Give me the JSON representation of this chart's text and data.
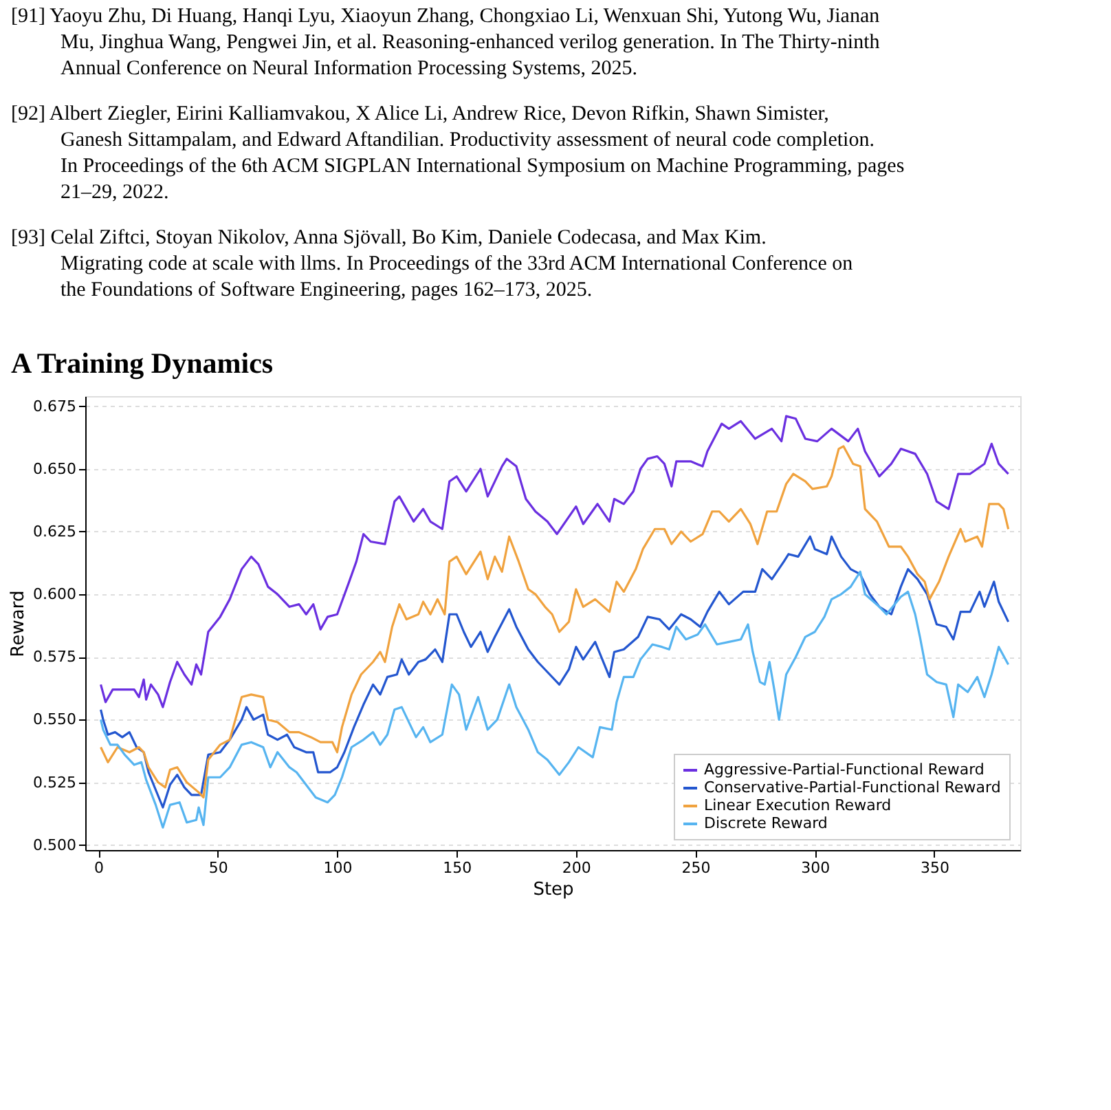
{
  "chart_data": {
    "type": "line",
    "title": "A Training Dynamics",
    "annotations": [
      "[91] Yaoyu Zhu, Di Huang, Hanqi Lyu, Xiaoyun Zhang, Chongxiao Li, Wenxuan Shi, Yutong Wu, Jianan Mu, Jinghua Wang, Pengwei Jin, et al. Reasoning-enhanced verilog generation. In The Thirty-ninth Annual Conference on Neural Information Processing Systems, 2025.",
      "[92] Albert Ziegler, Eirini Kalliamvakou, X Alice Li, Andrew Rice, Devon Rifkin, Shawn Simister, Ganesh Sittampalam, and Edward Aftandilian. Productivity assessment of neural code completion. In Proceedings of the 6th ACM SIGPLAN International Symposium on Machine Programming, pages 21–29, 2022.",
      "[93] Celal Ziftci, Stoyan Nikolov, Anna Sjövall, Bo Kim, Daniele Codecasa, and Max Kim. Migrating code at scale with llms. In Proceedings of the 33rd ACM International Conference on the Foundations of Software Engineering, pages 162–173, 2025."
    ],
    "xlabel": "Step",
    "ylabel": "Reward",
    "xlim": [
      -5.5,
      386
    ],
    "xticks": [
      0,
      50,
      100,
      150,
      200,
      250,
      300,
      350
    ],
    "ylim": [
      0.498,
      0.679
    ],
    "yticks": [
      {
        "value": 0.5,
        "label": "0.500"
      },
      {
        "value": 0.525,
        "label": "0.525"
      },
      {
        "value": 0.55,
        "label": "0.550"
      },
      {
        "value": 0.575,
        "label": "0.575"
      },
      {
        "value": 0.6,
        "label": "0.600"
      },
      {
        "value": 0.625,
        "label": "0.625"
      },
      {
        "value": 0.65,
        "label": "0.650"
      },
      {
        "value": 0.675,
        "label": "0.675"
      }
    ],
    "grid": "y",
    "legend": "bottom right",
    "series": [
      {
        "name": "Aggressive-Partial-Functional Reward",
        "color": "#6a2fe0",
        "x": [
          1,
          3,
          6,
          15,
          17,
          19,
          20,
          22,
          25,
          27,
          30,
          33,
          36,
          39,
          41,
          43,
          46,
          51,
          55,
          60,
          64,
          67,
          71,
          75,
          80,
          84,
          87,
          90,
          93,
          96,
          100,
          105,
          108,
          111,
          114,
          120,
          124,
          126,
          132,
          136,
          139,
          144,
          147,
          150,
          154,
          160,
          163,
          169,
          171,
          175,
          179,
          183,
          188,
          192,
          200,
          203,
          209,
          214,
          216,
          220,
          224,
          227,
          230,
          234,
          237,
          240,
          242,
          248,
          253,
          255,
          261,
          264,
          269,
          275,
          282,
          286,
          288,
          292,
          296,
          301,
          307,
          314,
          318,
          321,
          327,
          332,
          336,
          342,
          347,
          351,
          356,
          360,
          365,
          371,
          374,
          377,
          381
        ],
        "values": [
          0.564,
          0.557,
          0.562,
          0.562,
          0.559,
          0.566,
          0.558,
          0.564,
          0.56,
          0.555,
          0.565,
          0.573,
          0.568,
          0.564,
          0.572,
          0.568,
          0.585,
          0.591,
          0.598,
          0.61,
          0.615,
          0.612,
          0.603,
          0.6,
          0.595,
          0.596,
          0.592,
          0.596,
          0.586,
          0.591,
          0.592,
          0.605,
          0.613,
          0.624,
          0.621,
          0.62,
          0.637,
          0.639,
          0.629,
          0.634,
          0.629,
          0.626,
          0.645,
          0.647,
          0.641,
          0.65,
          0.639,
          0.651,
          0.654,
          0.651,
          0.638,
          0.633,
          0.629,
          0.624,
          0.635,
          0.628,
          0.636,
          0.629,
          0.638,
          0.636,
          0.641,
          0.65,
          0.654,
          0.655,
          0.652,
          0.643,
          0.653,
          0.653,
          0.651,
          0.657,
          0.668,
          0.666,
          0.669,
          0.662,
          0.666,
          0.661,
          0.671,
          0.67,
          0.662,
          0.661,
          0.666,
          0.661,
          0.666,
          0.657,
          0.647,
          0.652,
          0.658,
          0.656,
          0.648,
          0.637,
          0.634,
          0.648,
          0.648,
          0.652,
          0.66,
          0.652,
          0.648
        ]
      },
      {
        "name": "Conservative-Partial-Functional Reward",
        "color": "#2356cf",
        "x": [
          1,
          2,
          4,
          7,
          10,
          13,
          16,
          19,
          21,
          24,
          27,
          30,
          33,
          36,
          39,
          43,
          46,
          51,
          55,
          60,
          62,
          65,
          69,
          71,
          75,
          79,
          82,
          87,
          90,
          92,
          97,
          100,
          103,
          107,
          111,
          115,
          118,
          121,
          125,
          127,
          130,
          134,
          137,
          141,
          144,
          147,
          150,
          153,
          156,
          160,
          163,
          166,
          172,
          175,
          180,
          184,
          189,
          193,
          197,
          200,
          203,
          208,
          214,
          216,
          220,
          226,
          230,
          235,
          239,
          244,
          248,
          252,
          255,
          260,
          264,
          270,
          275,
          278,
          282,
          287,
          289,
          293,
          298,
          300,
          305,
          307,
          311,
          315,
          319,
          323,
          327,
          332,
          336,
          339,
          343,
          347,
          351,
          355,
          358,
          361,
          365,
          369,
          371,
          375,
          377,
          381
        ],
        "values": [
          0.554,
          0.55,
          0.544,
          0.545,
          0.543,
          0.545,
          0.539,
          0.537,
          0.529,
          0.522,
          0.515,
          0.524,
          0.528,
          0.523,
          0.52,
          0.52,
          0.536,
          0.537,
          0.542,
          0.55,
          0.555,
          0.55,
          0.552,
          0.544,
          0.542,
          0.544,
          0.539,
          0.537,
          0.537,
          0.529,
          0.529,
          0.531,
          0.537,
          0.547,
          0.556,
          0.564,
          0.56,
          0.567,
          0.568,
          0.574,
          0.568,
          0.573,
          0.574,
          0.578,
          0.573,
          0.592,
          0.592,
          0.585,
          0.579,
          0.585,
          0.577,
          0.583,
          0.594,
          0.587,
          0.578,
          0.573,
          0.568,
          0.564,
          0.57,
          0.579,
          0.574,
          0.581,
          0.567,
          0.577,
          0.578,
          0.583,
          0.591,
          0.59,
          0.586,
          0.592,
          0.59,
          0.587,
          0.593,
          0.601,
          0.596,
          0.601,
          0.601,
          0.61,
          0.606,
          0.613,
          0.616,
          0.615,
          0.623,
          0.618,
          0.616,
          0.623,
          0.615,
          0.61,
          0.608,
          0.6,
          0.595,
          0.592,
          0.603,
          0.61,
          0.606,
          0.6,
          0.588,
          0.587,
          0.582,
          0.593,
          0.593,
          0.601,
          0.595,
          0.605,
          0.597,
          0.589
        ]
      },
      {
        "name": "Linear Execution Reward",
        "color": "#f0a23e",
        "x": [
          1,
          4,
          8,
          13,
          17,
          19,
          21,
          25,
          28,
          30,
          33,
          37,
          42,
          44,
          46,
          51,
          55,
          60,
          64,
          69,
          71,
          75,
          80,
          84,
          89,
          93,
          98,
          100,
          102,
          106,
          110,
          115,
          118,
          120,
          123,
          126,
          129,
          134,
          136,
          139,
          142,
          145,
          147,
          150,
          154,
          160,
          163,
          166,
          169,
          172,
          176,
          180,
          183,
          187,
          190,
          193,
          197,
          200,
          203,
          208,
          214,
          217,
          220,
          225,
          228,
          233,
          237,
          240,
          244,
          248,
          253,
          257,
          260,
          264,
          269,
          273,
          276,
          280,
          284,
          288,
          291,
          296,
          299,
          305,
          307,
          310,
          312,
          316,
          319,
          321,
          326,
          331,
          336,
          339,
          343,
          346,
          348,
          352,
          356,
          361,
          363,
          368,
          370,
          373,
          377,
          379,
          381
        ],
        "values": [
          0.539,
          0.533,
          0.539,
          0.537,
          0.539,
          0.537,
          0.531,
          0.525,
          0.523,
          0.53,
          0.531,
          0.525,
          0.521,
          0.519,
          0.534,
          0.54,
          0.542,
          0.559,
          0.56,
          0.559,
          0.55,
          0.549,
          0.545,
          0.545,
          0.543,
          0.541,
          0.541,
          0.537,
          0.547,
          0.56,
          0.568,
          0.573,
          0.577,
          0.573,
          0.587,
          0.596,
          0.59,
          0.592,
          0.597,
          0.592,
          0.598,
          0.592,
          0.613,
          0.615,
          0.608,
          0.617,
          0.606,
          0.615,
          0.609,
          0.623,
          0.613,
          0.602,
          0.6,
          0.595,
          0.592,
          0.585,
          0.589,
          0.602,
          0.595,
          0.598,
          0.593,
          0.605,
          0.601,
          0.61,
          0.618,
          0.626,
          0.626,
          0.62,
          0.625,
          0.621,
          0.624,
          0.633,
          0.633,
          0.629,
          0.634,
          0.628,
          0.62,
          0.633,
          0.633,
          0.644,
          0.648,
          0.645,
          0.642,
          0.643,
          0.647,
          0.658,
          0.659,
          0.652,
          0.651,
          0.634,
          0.629,
          0.619,
          0.619,
          0.615,
          0.608,
          0.605,
          0.598,
          0.605,
          0.615,
          0.626,
          0.621,
          0.623,
          0.619,
          0.636,
          0.636,
          0.634,
          0.626
        ]
      },
      {
        "name": "Discrete Reward",
        "color": "#56b4f0",
        "x": [
          1,
          2,
          5,
          8,
          11,
          15,
          18,
          20,
          24,
          27,
          30,
          34,
          37,
          41,
          42,
          44,
          46,
          51,
          55,
          60,
          64,
          69,
          72,
          75,
          80,
          83,
          87,
          91,
          96,
          99,
          102,
          106,
          111,
          115,
          118,
          121,
          124,
          127,
          133,
          136,
          139,
          144,
          148,
          151,
          154,
          159,
          163,
          167,
          172,
          175,
          180,
          184,
          188,
          193,
          197,
          201,
          207,
          210,
          215,
          217,
          220,
          224,
          227,
          232,
          236,
          239,
          242,
          246,
          251,
          254,
          259,
          264,
          269,
          272,
          274,
          277,
          279,
          281,
          283,
          285,
          288,
          292,
          296,
          300,
          304,
          307,
          311,
          315,
          319,
          321,
          327,
          330,
          336,
          339,
          342,
          344,
          347,
          351,
          355,
          358,
          360,
          364,
          368,
          371,
          374,
          377,
          381
        ],
        "values": [
          0.55,
          0.546,
          0.54,
          0.54,
          0.536,
          0.532,
          0.533,
          0.526,
          0.516,
          0.507,
          0.516,
          0.517,
          0.509,
          0.51,
          0.515,
          0.508,
          0.527,
          0.527,
          0.531,
          0.54,
          0.541,
          0.539,
          0.531,
          0.537,
          0.531,
          0.529,
          0.524,
          0.519,
          0.517,
          0.52,
          0.527,
          0.539,
          0.542,
          0.545,
          0.54,
          0.544,
          0.554,
          0.555,
          0.543,
          0.547,
          0.541,
          0.544,
          0.564,
          0.56,
          0.546,
          0.559,
          0.546,
          0.55,
          0.564,
          0.555,
          0.546,
          0.537,
          0.534,
          0.528,
          0.533,
          0.539,
          0.535,
          0.547,
          0.546,
          0.557,
          0.567,
          0.567,
          0.574,
          0.58,
          0.579,
          0.578,
          0.587,
          0.582,
          0.584,
          0.588,
          0.58,
          0.581,
          0.582,
          0.588,
          0.577,
          0.565,
          0.564,
          0.573,
          0.562,
          0.55,
          0.568,
          0.575,
          0.583,
          0.585,
          0.591,
          0.598,
          0.6,
          0.603,
          0.609,
          0.6,
          0.595,
          0.592,
          0.599,
          0.601,
          0.592,
          0.583,
          0.568,
          0.565,
          0.564,
          0.551,
          0.564,
          0.561,
          0.567,
          0.559,
          0.568,
          0.579,
          0.572
        ]
      }
    ]
  }
}
